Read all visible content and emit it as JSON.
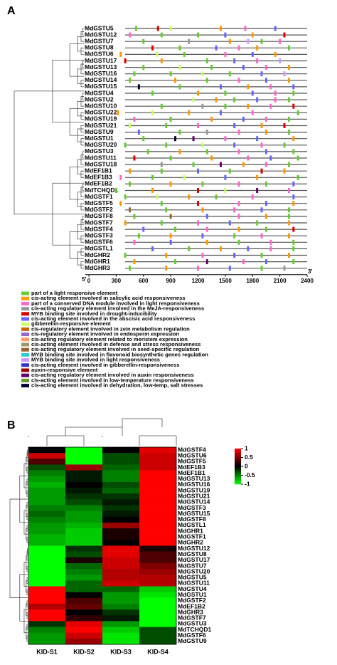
{
  "panel_a": {
    "label": "A",
    "genes": [
      "MdGSTU5",
      "MdGSTU12",
      "MdGSTU7",
      "MdGSTU8",
      "MdGSTU6",
      "MdGSTU17",
      "MdGSTU13",
      "MdGSTU16",
      "MdGSTU14",
      "MdGSTU15",
      "MdGSTU4",
      "MdGSTU2",
      "MdGSTU10",
      "MdGSTU22",
      "MdGSTU19",
      "MdGSTU21",
      "MdGSTU9",
      "MdGSTU1",
      "MdGSTU20",
      "MdGSTU3",
      "MdGSTU11",
      "MdGSTU18",
      "MdEF1B1",
      "MdEF1B3",
      "MdEF1B2",
      "MdTCHQD1",
      "MdGSTF1",
      "MdGSTF5",
      "MdGSTF2",
      "MdGSTF8",
      "MdGSTF7",
      "MdGSTF4",
      "MdGSTF3",
      "MdGSTF6",
      "MdGSTL1",
      "MdGHR2",
      "MdGHR1",
      "MdGHR3"
    ],
    "motifs": [
      [
        [
          520,
          0
        ],
        [
          760,
          4
        ],
        [
          900,
          6
        ],
        [
          1450,
          1
        ],
        [
          1720,
          2
        ],
        [
          2050,
          5
        ]
      ],
      [
        [
          450,
          2
        ],
        [
          800,
          0
        ],
        [
          1200,
          0
        ],
        [
          1500,
          5
        ],
        [
          1800,
          1
        ],
        [
          2150,
          4
        ]
      ],
      [
        [
          600,
          0
        ],
        [
          1100,
          3
        ],
        [
          1550,
          1
        ],
        [
          1750,
          13
        ],
        [
          1900,
          0
        ],
        [
          2100,
          2
        ]
      ],
      [
        [
          700,
          4
        ],
        [
          1000,
          0
        ],
        [
          1400,
          5
        ],
        [
          1650,
          2
        ],
        [
          1850,
          1
        ],
        [
          2200,
          0
        ]
      ],
      [
        [
          350,
          1
        ],
        [
          750,
          6
        ],
        [
          1050,
          0
        ],
        [
          1500,
          2
        ],
        [
          1800,
          5
        ],
        [
          2050,
          1
        ]
      ],
      [
        [
          400,
          4
        ],
        [
          800,
          1
        ],
        [
          1300,
          0
        ],
        [
          1600,
          5
        ],
        [
          1850,
          2
        ],
        [
          2100,
          13
        ]
      ],
      [
        [
          600,
          0
        ],
        [
          1000,
          6
        ],
        [
          1350,
          0
        ],
        [
          1700,
          5
        ],
        [
          1950,
          2
        ],
        [
          2200,
          1
        ]
      ],
      [
        [
          500,
          0
        ],
        [
          900,
          0
        ],
        [
          1250,
          6
        ],
        [
          1550,
          0
        ],
        [
          1900,
          5
        ],
        [
          2150,
          13
        ]
      ],
      [
        [
          450,
          0
        ],
        [
          950,
          1
        ],
        [
          1300,
          0
        ],
        [
          1650,
          2
        ],
        [
          1950,
          5
        ],
        [
          2200,
          1
        ]
      ],
      [
        [
          550,
          18
        ],
        [
          1000,
          0
        ],
        [
          1450,
          5
        ],
        [
          1750,
          1
        ],
        [
          2000,
          2
        ],
        [
          2250,
          5
        ]
      ],
      [
        [
          700,
          0
        ],
        [
          1200,
          1
        ],
        [
          1500,
          0
        ],
        [
          1800,
          5
        ],
        [
          2050,
          2
        ],
        [
          2250,
          0
        ]
      ],
      [
        [
          1150,
          6
        ],
        [
          1400,
          1
        ],
        [
          1600,
          0
        ],
        [
          1850,
          5
        ],
        [
          2050,
          2
        ],
        [
          2200,
          0
        ]
      ],
      [
        [
          800,
          0
        ],
        [
          1250,
          3
        ],
        [
          1500,
          0
        ],
        [
          1750,
          1
        ],
        [
          2000,
          2
        ],
        [
          2250,
          4
        ]
      ],
      [
        [
          320,
          1
        ],
        [
          700,
          6
        ],
        [
          1100,
          1
        ],
        [
          1450,
          5
        ],
        [
          1800,
          2
        ],
        [
          2300,
          0
        ]
      ],
      [
        [
          500,
          2
        ],
        [
          900,
          0
        ],
        [
          1350,
          1
        ],
        [
          1700,
          5
        ],
        [
          1950,
          2
        ],
        [
          2200,
          0
        ]
      ],
      [
        [
          450,
          6
        ],
        [
          850,
          0
        ],
        [
          1200,
          2
        ],
        [
          1600,
          5
        ],
        [
          1900,
          1
        ],
        [
          2150,
          4
        ]
      ],
      [
        [
          550,
          5
        ],
        [
          1000,
          0
        ],
        [
          1300,
          3
        ],
        [
          1650,
          2
        ],
        [
          1950,
          1
        ],
        [
          2200,
          0
        ]
      ],
      [
        [
          600,
          0
        ],
        [
          950,
          18
        ],
        [
          1150,
          16
        ],
        [
          1500,
          2
        ],
        [
          1850,
          5
        ],
        [
          2250,
          1
        ]
      ],
      [
        [
          400,
          0
        ],
        [
          850,
          0
        ],
        [
          1250,
          6
        ],
        [
          1600,
          5
        ],
        [
          1900,
          2
        ],
        [
          2150,
          0
        ]
      ],
      [
        [
          650,
          0
        ],
        [
          1000,
          1
        ],
        [
          1300,
          0
        ],
        [
          1650,
          2
        ],
        [
          1950,
          5
        ],
        [
          2250,
          0
        ]
      ],
      [
        [
          500,
          4
        ],
        [
          900,
          0
        ],
        [
          1350,
          1
        ],
        [
          1750,
          2
        ],
        [
          2000,
          5
        ],
        [
          2300,
          0
        ]
      ],
      [
        [
          800,
          3
        ],
        [
          1150,
          0
        ],
        [
          1450,
          16
        ],
        [
          1700,
          1
        ],
        [
          1950,
          2
        ],
        [
          2200,
          0
        ]
      ],
      [
        [
          450,
          1
        ],
        [
          800,
          0
        ],
        [
          1200,
          5
        ],
        [
          1550,
          0
        ],
        [
          1900,
          4
        ],
        [
          2150,
          1
        ]
      ],
      [
        [
          350,
          2
        ],
        [
          700,
          0
        ],
        [
          1050,
          6
        ],
        [
          1500,
          5
        ],
        [
          1850,
          1
        ],
        [
          2300,
          0
        ]
      ],
      [
        [
          450,
          0
        ],
        [
          900,
          1
        ],
        [
          1250,
          0
        ],
        [
          1650,
          2
        ],
        [
          1950,
          0
        ],
        [
          2250,
          5
        ]
      ],
      [
        [
          300,
          0
        ],
        [
          700,
          1
        ],
        [
          1200,
          4
        ],
        [
          1500,
          6
        ],
        [
          1850,
          16
        ],
        [
          2200,
          2
        ]
      ],
      [
        [
          400,
          0
        ],
        [
          750,
          6
        ],
        [
          1100,
          1
        ],
        [
          1400,
          0
        ],
        [
          1800,
          2
        ],
        [
          2250,
          5
        ]
      ],
      [
        [
          350,
          1
        ],
        [
          800,
          0
        ],
        [
          1200,
          4
        ],
        [
          1650,
          2
        ],
        [
          1950,
          5
        ],
        [
          2250,
          1
        ]
      ],
      [
        [
          450,
          11
        ],
        [
          850,
          0
        ],
        [
          1250,
          1
        ],
        [
          1600,
          2
        ],
        [
          1900,
          5
        ],
        [
          2200,
          0
        ]
      ],
      [
        [
          500,
          0
        ],
        [
          900,
          11
        ],
        [
          1300,
          5
        ],
        [
          1650,
          2
        ],
        [
          1950,
          1
        ],
        [
          2200,
          0
        ]
      ],
      [
        [
          400,
          1
        ],
        [
          800,
          0
        ],
        [
          1200,
          2
        ],
        [
          1550,
          5
        ],
        [
          1850,
          0
        ],
        [
          2200,
          1
        ]
      ],
      [
        [
          600,
          5
        ],
        [
          950,
          0
        ],
        [
          1300,
          2
        ],
        [
          1650,
          1
        ],
        [
          1950,
          0
        ],
        [
          2250,
          4
        ]
      ],
      [
        [
          550,
          0
        ],
        [
          900,
          1
        ],
        [
          1250,
          5
        ],
        [
          1600,
          0
        ],
        [
          1900,
          2
        ],
        [
          2200,
          1
        ]
      ],
      [
        [
          500,
          2
        ],
        [
          900,
          5
        ],
        [
          1300,
          1
        ],
        [
          1650,
          0
        ],
        [
          2000,
          2
        ],
        [
          2250,
          0
        ]
      ],
      [
        [
          700,
          5
        ],
        [
          1100,
          0
        ],
        [
          1450,
          1
        ],
        [
          1750,
          5
        ],
        [
          2000,
          2
        ],
        [
          2250,
          0
        ]
      ],
      [
        [
          400,
          0
        ],
        [
          850,
          1
        ],
        [
          1250,
          2
        ],
        [
          1600,
          5
        ],
        [
          1900,
          0
        ],
        [
          2200,
          1
        ]
      ],
      [
        [
          500,
          1
        ],
        [
          950,
          0
        ],
        [
          1300,
          16
        ],
        [
          1700,
          2
        ],
        [
          1950,
          5
        ],
        [
          2250,
          0
        ]
      ],
      [
        [
          450,
          0
        ],
        [
          850,
          1
        ],
        [
          1200,
          2
        ],
        [
          1550,
          5
        ],
        [
          1900,
          0
        ],
        [
          2150,
          3
        ]
      ]
    ],
    "axis": {
      "start_label": "5'",
      "end_label": "3'",
      "xlim": [
        0,
        2400
      ],
      "xticks": [
        0,
        300,
        600,
        900,
        1200,
        1500,
        1800,
        2100,
        2400
      ]
    },
    "legend": [
      {
        "name": "part of a light responsive element",
        "color": "#66cc33"
      },
      {
        "name": "cis-acting element involved in salicylic acid responsiveness",
        "color": "#ff9900"
      },
      {
        "name": "part of a conserved DNA module involved in light responsiveness",
        "color": "#ff66cc"
      },
      {
        "name": "cis-acting regulatory element involved in the MeJA-responsiveness",
        "color": "#999999"
      },
      {
        "name": "MYB binding site involved in drought-inducibility",
        "color": "#dd0000"
      },
      {
        "name": "cis-acting element involved in the abscisic acid responsiveness",
        "color": "#6666ff"
      },
      {
        "name": "gibberellin-responsive element",
        "color": "#ccff66"
      },
      {
        "name": "cis-regulatory element involved in zein metabolism regulation",
        "color": "#cc6600"
      },
      {
        "name": "cis-regulatory element involved in endosperm expression",
        "color": "#9966cc"
      },
      {
        "name": "cis-acting regulatory element related to meristem expression",
        "color": "#ff9966"
      },
      {
        "name": "cis-acting element involved in defense and stress responsiveness",
        "color": "#999966"
      },
      {
        "name": "cis-acting regulatory element involved in seed-specific regulation",
        "color": "#996633"
      },
      {
        "name": "MYB binding site involved in flavonoid biosynthetic genes regulation",
        "color": "#33cccc"
      },
      {
        "name": "MYB binding site involved in light responsiveness",
        "color": "#cc99ff"
      },
      {
        "name": "cis-acting element involved in gibberellin-responsiveness",
        "color": "#3333cc"
      },
      {
        "name": "auxin-responsive element",
        "color": "#990000"
      },
      {
        "name": "cis-acting regulatory element involved in auxin responsiveness",
        "color": "#660066"
      },
      {
        "name": "cis-acting element involved in low-temperature responsiveness",
        "color": "#669933"
      },
      {
        "name": "cis-acting element involved in dehydration, low-temp, salt stresses",
        "color": "#000033"
      }
    ]
  },
  "panel_b": {
    "label": "B",
    "columns": [
      "KID-S1",
      "KID-S2",
      "KID-S3",
      "KID-S4"
    ],
    "rows": [
      "MdGSTF4",
      "MdGSTU6",
      "MdGSTF5",
      "MdEF1B3",
      "MdEF1B1",
      "MdGSTU13",
      "MdGSTU16",
      "MdGSTU19",
      "MdGSTU21",
      "MdGSTU14",
      "MdGSTF3",
      "MdGSTU15",
      "MdGSTF8",
      "MdGSTL1",
      "MdGHR1",
      "MdGSTF1",
      "MdGHR2",
      "MdGSTU12",
      "MdGSTU8",
      "MdGSTU17",
      "MdGSTU7",
      "MdGSTU20",
      "MdGSTU5",
      "MdGSTU11",
      "MdGSTU4",
      "MdGSTU1",
      "MdGSTF2",
      "MdEF1B2",
      "MdGHR3",
      "MdGSTF7",
      "MdGSTU3",
      "MdTCHQD1",
      "MdGSTF6",
      "MdGSTU9"
    ],
    "values": [
      [
        0,
        -1,
        0,
        0.9
      ],
      [
        0.8,
        -1,
        -0.3,
        0.8
      ],
      [
        0.3,
        -1,
        -0.3,
        0.8
      ],
      [
        -0.3,
        0.6,
        -0.4,
        0.8
      ],
      [
        -0.5,
        -0.1,
        -0.5,
        1
      ],
      [
        -0.6,
        -0.1,
        -0.5,
        1
      ],
      [
        -0.7,
        0,
        -0.3,
        1
      ],
      [
        -0.6,
        -0.1,
        -0.4,
        1
      ],
      [
        -0.6,
        -0.2,
        -0.2,
        1
      ],
      [
        -0.6,
        -0.3,
        -0.1,
        1
      ],
      [
        -0.5,
        -0.5,
        -0.2,
        1
      ],
      [
        -0.4,
        -0.6,
        -0.1,
        1
      ],
      [
        -0.5,
        -0.6,
        0,
        1
      ],
      [
        -0.6,
        -0.7,
        0.6,
        1
      ],
      [
        -0.6,
        -0.8,
        0.1,
        1
      ],
      [
        -0.7,
        -0.8,
        0.1,
        1
      ],
      [
        -0.7,
        -0.8,
        0,
        1
      ],
      [
        -1,
        -0.2,
        0.9,
        0.1
      ],
      [
        -1,
        -0.3,
        0.9,
        0.3
      ],
      [
        -1,
        0.1,
        0.8,
        0.3
      ],
      [
        -1,
        -0.4,
        0.8,
        0.5
      ],
      [
        -1,
        -0.5,
        0.7,
        0.6
      ],
      [
        -1,
        -0.6,
        0.7,
        0.7
      ],
      [
        -1,
        -0.4,
        0.8,
        0.7
      ],
      [
        1,
        -0.4,
        -0.4,
        -0.8
      ],
      [
        1,
        0,
        -0.6,
        -0.9
      ],
      [
        1,
        0.3,
        -0.6,
        -1
      ],
      [
        0.7,
        0.4,
        -0.5,
        -1
      ],
      [
        1,
        0,
        -0.2,
        -1
      ],
      [
        1,
        0.2,
        -0.1,
        -1
      ],
      [
        -0.2,
        0.9,
        -0.6,
        -1
      ],
      [
        -0.5,
        1,
        -0.8,
        -0.3
      ],
      [
        -0.6,
        0.8,
        -0.9,
        -0.3
      ],
      [
        -0.6,
        0.6,
        -0.9,
        -0.3
      ]
    ],
    "clim": [
      -1,
      1
    ],
    "cticks": [
      1,
      0.5,
      0,
      -0.5,
      -1
    ]
  }
}
